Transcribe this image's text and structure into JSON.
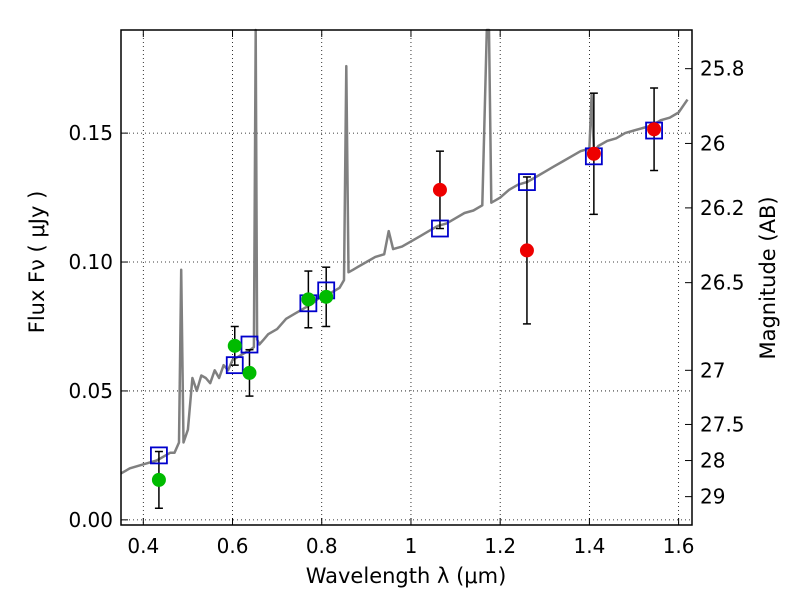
{
  "chart_data": {
    "type": "scatter",
    "title": "",
    "xlabel": "Wavelength  λ (μm)",
    "ylabel_left": "Flux  Fν  ( μJy )",
    "ylabel_right": "Magnitude (AB)",
    "xlim": [
      0.35,
      1.63
    ],
    "ylim": [
      -0.002,
      0.19
    ],
    "grid": true,
    "x_ticks": [
      0.4,
      0.6,
      0.8,
      1.0,
      1.2,
      1.4,
      1.6
    ],
    "x_tick_labels": [
      "0.4",
      "0.6",
      "0.8",
      "1",
      "1.2",
      "1.4",
      "1.6"
    ],
    "y_ticks": [
      0.0,
      0.05,
      0.1,
      0.15
    ],
    "y_tick_labels": [
      "0.00",
      "0.05",
      "0.10",
      "0.15"
    ],
    "right_ticks": [
      {
        "label": "25.8",
        "flux": 0.175
      },
      {
        "label": "26",
        "flux": 0.146
      },
      {
        "label": "26.2",
        "flux": 0.121
      },
      {
        "label": "26.5",
        "flux": 0.092
      },
      {
        "label": "27",
        "flux": 0.058
      },
      {
        "label": "27.5",
        "flux": 0.037
      },
      {
        "label": "28",
        "flux": 0.023
      },
      {
        "label": "29",
        "flux": 0.009
      }
    ],
    "series": [
      {
        "kind": "spectrum",
        "color": "#808080",
        "x": [
          0.35,
          0.37,
          0.39,
          0.41,
          0.43,
          0.45,
          0.46,
          0.47,
          0.48,
          0.485,
          0.49,
          0.5,
          0.51,
          0.52,
          0.53,
          0.54,
          0.55,
          0.56,
          0.57,
          0.58,
          0.59,
          0.6,
          0.61,
          0.62,
          0.63,
          0.64,
          0.648,
          0.652,
          0.655,
          0.66,
          0.67,
          0.68,
          0.7,
          0.72,
          0.74,
          0.76,
          0.78,
          0.8,
          0.82,
          0.84,
          0.85,
          0.855,
          0.86,
          0.87,
          0.88,
          0.9,
          0.92,
          0.94,
          0.95,
          0.96,
          0.98,
          1.0,
          1.02,
          1.04,
          1.06,
          1.08,
          1.1,
          1.12,
          1.14,
          1.16,
          1.17,
          1.175,
          1.18,
          1.19,
          1.2,
          1.22,
          1.24,
          1.26,
          1.28,
          1.3,
          1.32,
          1.34,
          1.36,
          1.38,
          1.4,
          1.405,
          1.41,
          1.42,
          1.44,
          1.46,
          1.48,
          1.5,
          1.52,
          1.54,
          1.56,
          1.58,
          1.6,
          1.62
        ],
        "y": [
          0.018,
          0.02,
          0.021,
          0.022,
          0.023,
          0.025,
          0.026,
          0.026,
          0.03,
          0.097,
          0.03,
          0.035,
          0.055,
          0.05,
          0.056,
          0.055,
          0.053,
          0.058,
          0.055,
          0.06,
          0.058,
          0.062,
          0.063,
          0.064,
          0.065,
          0.066,
          0.067,
          0.19,
          0.07,
          0.068,
          0.07,
          0.072,
          0.074,
          0.078,
          0.08,
          0.082,
          0.084,
          0.087,
          0.088,
          0.09,
          0.093,
          0.176,
          0.096,
          0.097,
          0.098,
          0.1,
          0.102,
          0.103,
          0.112,
          0.105,
          0.106,
          0.108,
          0.11,
          0.112,
          0.114,
          0.115,
          0.117,
          0.119,
          0.12,
          0.122,
          0.19,
          0.19,
          0.123,
          0.124,
          0.125,
          0.128,
          0.13,
          0.131,
          0.133,
          0.135,
          0.137,
          0.139,
          0.141,
          0.143,
          0.144,
          0.165,
          0.143,
          0.145,
          0.147,
          0.148,
          0.15,
          0.151,
          0.152,
          0.153,
          0.155,
          0.156,
          0.158,
          0.163
        ]
      },
      {
        "kind": "model-points",
        "color": "#0000cc",
        "marker": "open-square",
        "x": [
          0.435,
          0.605,
          0.638,
          0.77,
          0.81,
          1.065,
          1.26,
          1.41,
          1.545
        ],
        "y": [
          0.025,
          0.06,
          0.068,
          0.084,
          0.089,
          0.113,
          0.131,
          0.141,
          0.151
        ]
      },
      {
        "kind": "observed-green",
        "color": "#00bb00",
        "marker": "filled-circle",
        "x": [
          0.435,
          0.605,
          0.638,
          0.77,
          0.81
        ],
        "y": [
          0.0155,
          0.0675,
          0.057,
          0.0855,
          0.0865
        ],
        "err": [
          0.011,
          0.0075,
          0.009,
          0.011,
          0.0115
        ]
      },
      {
        "kind": "observed-red",
        "color": "#ee0000",
        "marker": "filled-circle",
        "x": [
          1.065,
          1.26,
          1.41,
          1.545
        ],
        "y": [
          0.128,
          0.1045,
          0.142,
          0.1515
        ],
        "err": [
          0.015,
          0.0285,
          0.0235,
          0.016
        ]
      }
    ]
  }
}
